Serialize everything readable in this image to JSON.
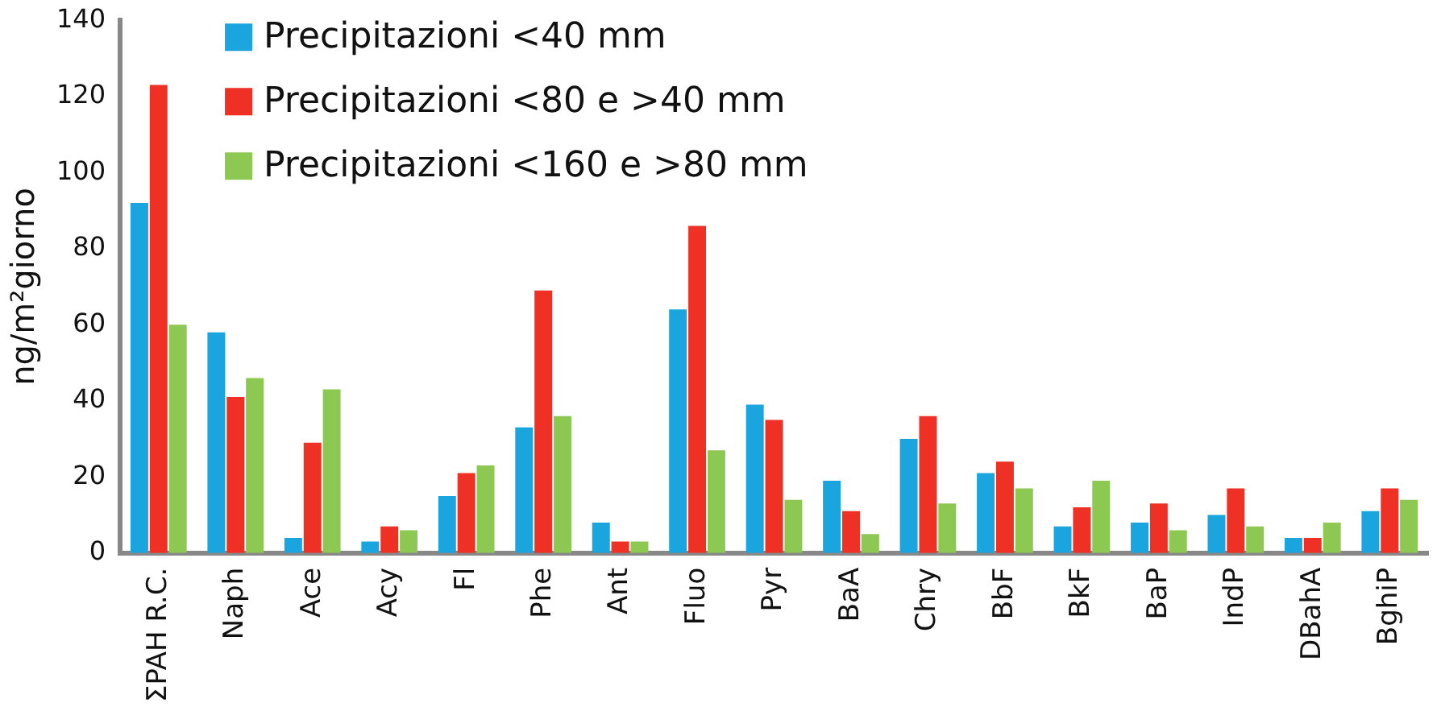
{
  "chart_data": {
    "type": "bar",
    "ylabel": "ng/m²giorno",
    "categories": [
      "ΣPAH R.C.",
      "Naph",
      "Ace",
      "Acy",
      "Fl",
      "Phe",
      "Ant",
      "Fluo",
      "Pyr",
      "BaA",
      "Chry",
      "BbF",
      "BkF",
      "BaP",
      "IndP",
      "DBahA",
      "BghiP"
    ],
    "series": [
      {
        "name": "Precipitazioni <40 mm",
        "color": "#1ba5df",
        "values": [
          92,
          58,
          4,
          3,
          15,
          33,
          8,
          64,
          39,
          19,
          30,
          21,
          7,
          8,
          10,
          4,
          11
        ]
      },
      {
        "name": "Precipitazioni <80 e >40 mm",
        "color": "#ee3124",
        "values": [
          123,
          41,
          29,
          7,
          21,
          69,
          3,
          86,
          35,
          11,
          36,
          24,
          12,
          13,
          17,
          4,
          17
        ]
      },
      {
        "name": "Precipitazioni <160 e >80 mm",
        "color": "#8dc852",
        "values": [
          60,
          46,
          43,
          6,
          23,
          36,
          3,
          27,
          14,
          5,
          13,
          17,
          19,
          6,
          7,
          8,
          14
        ]
      }
    ],
    "ylim": [
      0,
      140
    ],
    "yticks": [
      0,
      20,
      40,
      60,
      80,
      100,
      120,
      140
    ],
    "grid": false,
    "legend": "top left"
  }
}
